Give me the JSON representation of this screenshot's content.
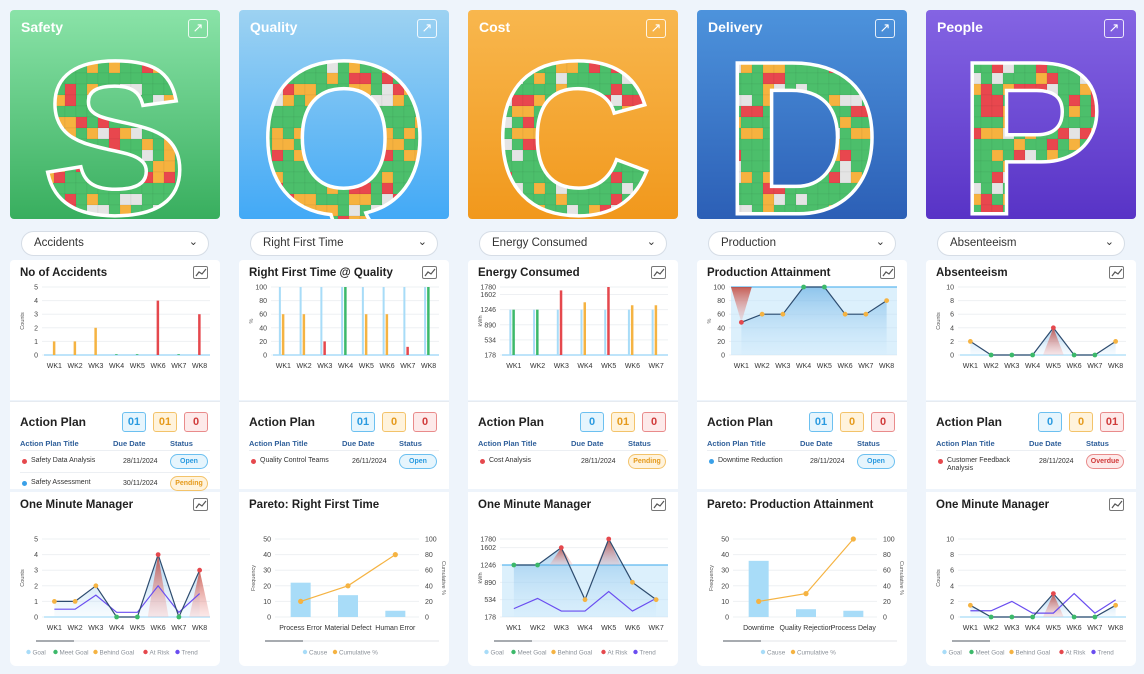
{
  "colors": {
    "goal": "#a8dcf8",
    "meet": "#3cb96a",
    "behind": "#f5b342",
    "risk": "#e5484d",
    "trend": "#6a4df0",
    "line": "#2d4b6e",
    "cause": "#a8dcf8",
    "cumulative": "#f5b342"
  },
  "legend": {
    "goal": "Goal",
    "meet": "Meet Goal",
    "behind": "Behind Goal",
    "risk": "At Risk",
    "trend": "Trend",
    "cause": "Cause",
    "cumulative": "Cumulative %"
  },
  "action_headers": {
    "title": "Action Plan Title",
    "due": "Due Date",
    "status": "Status"
  },
  "columns": [
    {
      "id": "safety",
      "title": "Safety",
      "letter": "S",
      "tile_colors": [
        "#8ae3a8",
        "#38ae5e"
      ],
      "dropdown": "Accidents",
      "chart1": {
        "type": "bar",
        "title": "No of Accidents",
        "ylabel": "Counts",
        "ylim": [
          0,
          5
        ],
        "yticks": [
          0,
          1,
          2,
          3,
          4,
          5
        ],
        "categories": [
          "WK1",
          "WK2",
          "WK3",
          "WK4",
          "WK5",
          "WK6",
          "WK7",
          "WK8"
        ],
        "goal": null,
        "values": [
          1,
          1,
          2,
          0,
          0,
          4,
          0,
          3
        ],
        "status": [
          "behind",
          "behind",
          "behind",
          "meet",
          "meet",
          "risk",
          "meet",
          "risk"
        ],
        "legend": [
          "goal",
          "meet",
          "behind",
          "risk"
        ]
      },
      "action": {
        "title": "Action Plan",
        "counts": [
          "01",
          "01",
          "0"
        ],
        "rows": [
          {
            "title": "Safety Data Analysis",
            "due": "28/11/2024",
            "status": "Open",
            "dot": "#e5484d"
          },
          {
            "title": "Safety Assessment",
            "due": "30/11/2024",
            "status": "Pending",
            "dot": "#3aa0e8"
          }
        ]
      },
      "chart2": {
        "type": "line",
        "title": "One Minute Manager",
        "ylabel": "Counts",
        "ylim": [
          0,
          5
        ],
        "yticks": [
          0,
          1,
          2,
          3,
          4,
          5
        ],
        "categories": [
          "WK1",
          "WK2",
          "WK3",
          "WK4",
          "WK5",
          "WK6",
          "WK7",
          "WK8"
        ],
        "goal": 0,
        "values": [
          1,
          1,
          2,
          0,
          0,
          4,
          0,
          3
        ],
        "status": [
          "behind",
          "behind",
          "behind",
          "meet",
          "meet",
          "risk",
          "meet",
          "risk"
        ],
        "trend": [
          0.5,
          0.5,
          1.4,
          0.3,
          0.3,
          2,
          0.3,
          1.5
        ],
        "legend": [
          "goal",
          "meet",
          "behind",
          "risk",
          "trend"
        ]
      }
    },
    {
      "id": "quality",
      "title": "Quality",
      "letter": "Q",
      "tile_colors": [
        "#9dd2f2",
        "#42a9f6"
      ],
      "dropdown": "Right First Time",
      "chart1": {
        "type": "bar",
        "title": "Right First Time @ Quality",
        "ylabel": "%",
        "ylim": [
          0,
          100
        ],
        "yticks": [
          0,
          20,
          40,
          60,
          80,
          100
        ],
        "categories": [
          "WK1",
          "WK2",
          "WK3",
          "WK4",
          "WK5",
          "WK6",
          "WK7",
          "WK8"
        ],
        "goal": [
          100,
          100,
          100,
          100,
          100,
          100,
          100,
          100
        ],
        "values": [
          60,
          60,
          20,
          100,
          60,
          60,
          12,
          100
        ],
        "status": [
          "behind",
          "behind",
          "risk",
          "meet",
          "behind",
          "behind",
          "risk",
          "meet"
        ],
        "legend": [
          "goal",
          "meet",
          "behind",
          "risk"
        ]
      },
      "action": {
        "title": "Action Plan",
        "counts": [
          "01",
          "0",
          "0"
        ],
        "rows": [
          {
            "title": "Quality Control Teams",
            "due": "26/11/2024",
            "status": "Open",
            "dot": "#e5484d"
          }
        ]
      },
      "chart2": {
        "type": "pareto",
        "title": "Pareto: Right First Time",
        "ylabel": "Frequency",
        "y2label": "Cumulative %",
        "ylim": [
          0,
          50
        ],
        "yticks": [
          0,
          10,
          20,
          30,
          40,
          50
        ],
        "y2lim": [
          0,
          100
        ],
        "y2ticks": [
          0,
          20,
          40,
          60,
          80,
          100
        ],
        "categories": [
          "Process Error",
          "Material Defect",
          "Human Error"
        ],
        "values": [
          22,
          14,
          4
        ],
        "cumulative": [
          20,
          40,
          80
        ],
        "legend": [
          "cause",
          "cumulative"
        ]
      }
    },
    {
      "id": "cost",
      "title": "Cost",
      "letter": "C",
      "tile_colors": [
        "#f8b74e",
        "#f1981c"
      ],
      "dropdown": "Energy Consumed",
      "chart1": {
        "type": "bar",
        "title": "Energy Consumed",
        "ylabel": "kWh",
        "ylim": [
          178,
          1780
        ],
        "yticks": [
          178,
          534,
          890,
          1246,
          1602,
          1780
        ],
        "categories": [
          "WK1",
          "WK2",
          "WK3",
          "WK4",
          "WK5",
          "WK6",
          "WK7"
        ],
        "goal": [
          1246,
          1246,
          1246,
          1246,
          1246,
          1246,
          1246
        ],
        "values": [
          1246,
          1246,
          1700,
          1420,
          1780,
          1350,
          1350
        ],
        "status": [
          "meet",
          "meet",
          "risk",
          "behind",
          "risk",
          "behind",
          "behind"
        ],
        "legend": [
          "goal",
          "meet",
          "behind",
          "risk"
        ]
      },
      "action": {
        "title": "Action Plan",
        "counts": [
          "0",
          "01",
          "0"
        ],
        "rows": [
          {
            "title": "Cost Analysis",
            "due": "28/11/2024",
            "status": "Pending",
            "dot": "#e5484d"
          }
        ]
      },
      "chart2": {
        "type": "line",
        "title": "One Minute Manager",
        "ylabel": "kWh",
        "ylim": [
          178,
          1780
        ],
        "yticks": [
          178,
          534,
          890,
          1246,
          1602,
          1780
        ],
        "categories": [
          "WK1",
          "WK2",
          "WK3",
          "WK4",
          "WK5",
          "WK6",
          "WK7"
        ],
        "goal": 1246,
        "values": [
          1246,
          1246,
          1602,
          534,
          1780,
          890,
          534
        ],
        "status": [
          "meet",
          "meet",
          "risk",
          "behind",
          "risk",
          "behind",
          "behind"
        ],
        "trend": [
          350,
          560,
          300,
          300,
          700,
          300,
          560
        ],
        "legend": [
          "goal",
          "meet",
          "behind",
          "risk",
          "trend"
        ]
      }
    },
    {
      "id": "delivery",
      "title": "Delivery",
      "letter": "D",
      "tile_colors": [
        "#4d93dc",
        "#2c5fb6"
      ],
      "dropdown": "Production",
      "chart1": {
        "type": "line",
        "title": "Production Attainment",
        "ylabel": "%",
        "ylim": [
          0,
          100
        ],
        "yticks": [
          0,
          20,
          40,
          60,
          80,
          100
        ],
        "categories": [
          "WK1",
          "WK2",
          "WK3",
          "WK4",
          "WK5",
          "WK6",
          "WK7",
          "WK8"
        ],
        "goal": 100,
        "values": [
          48,
          60,
          60,
          100,
          100,
          60,
          60,
          80
        ],
        "status": [
          "risk",
          "behind",
          "behind",
          "meet",
          "meet",
          "behind",
          "behind",
          "behind"
        ],
        "legend": [
          "goal",
          "meet",
          "behind",
          "risk"
        ]
      },
      "action": {
        "title": "Action Plan",
        "counts": [
          "01",
          "0",
          "0"
        ],
        "rows": [
          {
            "title": "Downtime Reduction",
            "due": "28/11/2024",
            "status": "Open",
            "dot": "#3aa0e8"
          }
        ]
      },
      "chart2": {
        "type": "pareto",
        "title": "Pareto: Production Attainment",
        "ylabel": "Frequency",
        "y2label": "Cumulative %",
        "ylim": [
          0,
          50
        ],
        "yticks": [
          0,
          10,
          20,
          30,
          40,
          50
        ],
        "y2lim": [
          0,
          100
        ],
        "y2ticks": [
          0,
          20,
          40,
          60,
          80,
          100
        ],
        "categories": [
          "Downtime",
          "Quality Rejection",
          "Process Delay"
        ],
        "values": [
          36,
          5,
          4
        ],
        "cumulative": [
          20,
          30,
          100
        ],
        "legend": [
          "cause",
          "cumulative"
        ]
      }
    },
    {
      "id": "people",
      "title": "People",
      "letter": "P",
      "tile_colors": [
        "#8464e3",
        "#5833c6"
      ],
      "dropdown": "Absenteeism",
      "chart1": {
        "type": "line",
        "title": "Absenteeism",
        "ylabel": "Counts",
        "ylim": [
          0,
          10
        ],
        "yticks": [
          0,
          2,
          4,
          6,
          8,
          10
        ],
        "categories": [
          "WK1",
          "WK2",
          "WK3",
          "WK4",
          "WK5",
          "WK6",
          "WK7",
          "WK8"
        ],
        "goal": 0,
        "values": [
          2,
          0,
          0,
          0,
          4,
          0,
          0,
          2
        ],
        "status": [
          "behind",
          "meet",
          "meet",
          "meet",
          "risk",
          "meet",
          "meet",
          "behind"
        ],
        "legend": [
          "goal",
          "meet",
          "behind",
          "risk"
        ]
      },
      "action": {
        "title": "Action Plan",
        "counts": [
          "0",
          "0",
          "01"
        ],
        "rows": [
          {
            "title": "Customer Feedback Analysis",
            "due": "28/11/2024",
            "status": "Overdue",
            "dot": "#e5484d"
          }
        ]
      },
      "chart2": {
        "type": "line",
        "title": "One Minute Manager",
        "ylabel": "Counts",
        "ylim": [
          0,
          10
        ],
        "yticks": [
          0,
          2,
          4,
          6,
          8,
          10
        ],
        "categories": [
          "WK1",
          "WK2",
          "WK3",
          "WK4",
          "WK5",
          "WK6",
          "WK7",
          "WK8"
        ],
        "goal": 0,
        "values": [
          1.5,
          0,
          0,
          0,
          3,
          0,
          0,
          1.5
        ],
        "status": [
          "behind",
          "meet",
          "meet",
          "meet",
          "risk",
          "meet",
          "meet",
          "behind"
        ],
        "trend": [
          0.8,
          0.8,
          2,
          0.5,
          0.5,
          3,
          0.5,
          2.2
        ],
        "legend": [
          "goal",
          "meet",
          "behind",
          "risk",
          "trend"
        ]
      }
    }
  ]
}
